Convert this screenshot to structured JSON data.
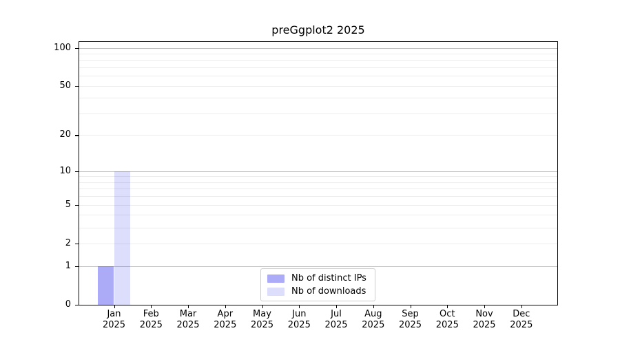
{
  "chart_data": {
    "type": "bar",
    "title": "preGgplot2 2025",
    "categories": [
      {
        "month": "Jan",
        "year": "2025"
      },
      {
        "month": "Feb",
        "year": "2025"
      },
      {
        "month": "Mar",
        "year": "2025"
      },
      {
        "month": "Apr",
        "year": "2025"
      },
      {
        "month": "May",
        "year": "2025"
      },
      {
        "month": "Jun",
        "year": "2025"
      },
      {
        "month": "Jul",
        "year": "2025"
      },
      {
        "month": "Aug",
        "year": "2025"
      },
      {
        "month": "Sep",
        "year": "2025"
      },
      {
        "month": "Oct",
        "year": "2025"
      },
      {
        "month": "Nov",
        "year": "2025"
      },
      {
        "month": "Dec",
        "year": "2025"
      }
    ],
    "series": [
      {
        "name": "Nb of distinct IPs",
        "color": "rgba(28,28,232,0.37)",
        "hex_on_white": "#abaaf6",
        "values": [
          1,
          0,
          0,
          0,
          0,
          0,
          0,
          0,
          0,
          0,
          0,
          0
        ]
      },
      {
        "name": "Nb of downloads",
        "color": "rgba(28,28,232,0.15)",
        "hex_on_white": "#dcdcf8",
        "values": [
          10,
          0,
          0,
          0,
          0,
          0,
          0,
          0,
          0,
          0,
          0,
          0
        ]
      }
    ],
    "yscale": "log1p",
    "ylim": [
      0,
      100
    ],
    "yticks": [
      0,
      1,
      2,
      5,
      10,
      20,
      50,
      100
    ],
    "grid": {
      "major_values": [
        1,
        10,
        100
      ],
      "minor_values": [
        2,
        3,
        4,
        5,
        6,
        7,
        8,
        9,
        20,
        30,
        40,
        50,
        60,
        70,
        80,
        90
      ],
      "major_color": "#c3c3c3",
      "minor_color": "#ececec"
    },
    "axis_color": "#000000",
    "legend": {
      "position": "lower center"
    }
  }
}
